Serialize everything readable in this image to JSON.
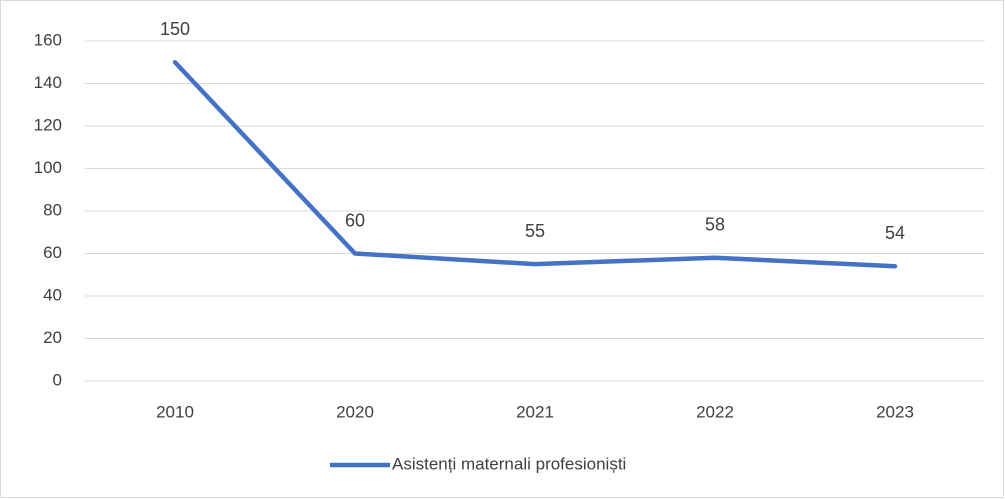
{
  "chart_data": {
    "type": "line",
    "categories": [
      "2010",
      "2020",
      "2021",
      "2022",
      "2023"
    ],
    "series": [
      {
        "name": "Asistenți maternali profesioniști",
        "color": "#4472c4",
        "values": [
          150,
          60,
          55,
          58,
          54
        ]
      }
    ],
    "ylim": [
      0,
      160
    ],
    "yticks": [
      0,
      20,
      40,
      60,
      80,
      100,
      120,
      140,
      160
    ],
    "grid": true,
    "legend": "bottom",
    "data_labels": true
  }
}
